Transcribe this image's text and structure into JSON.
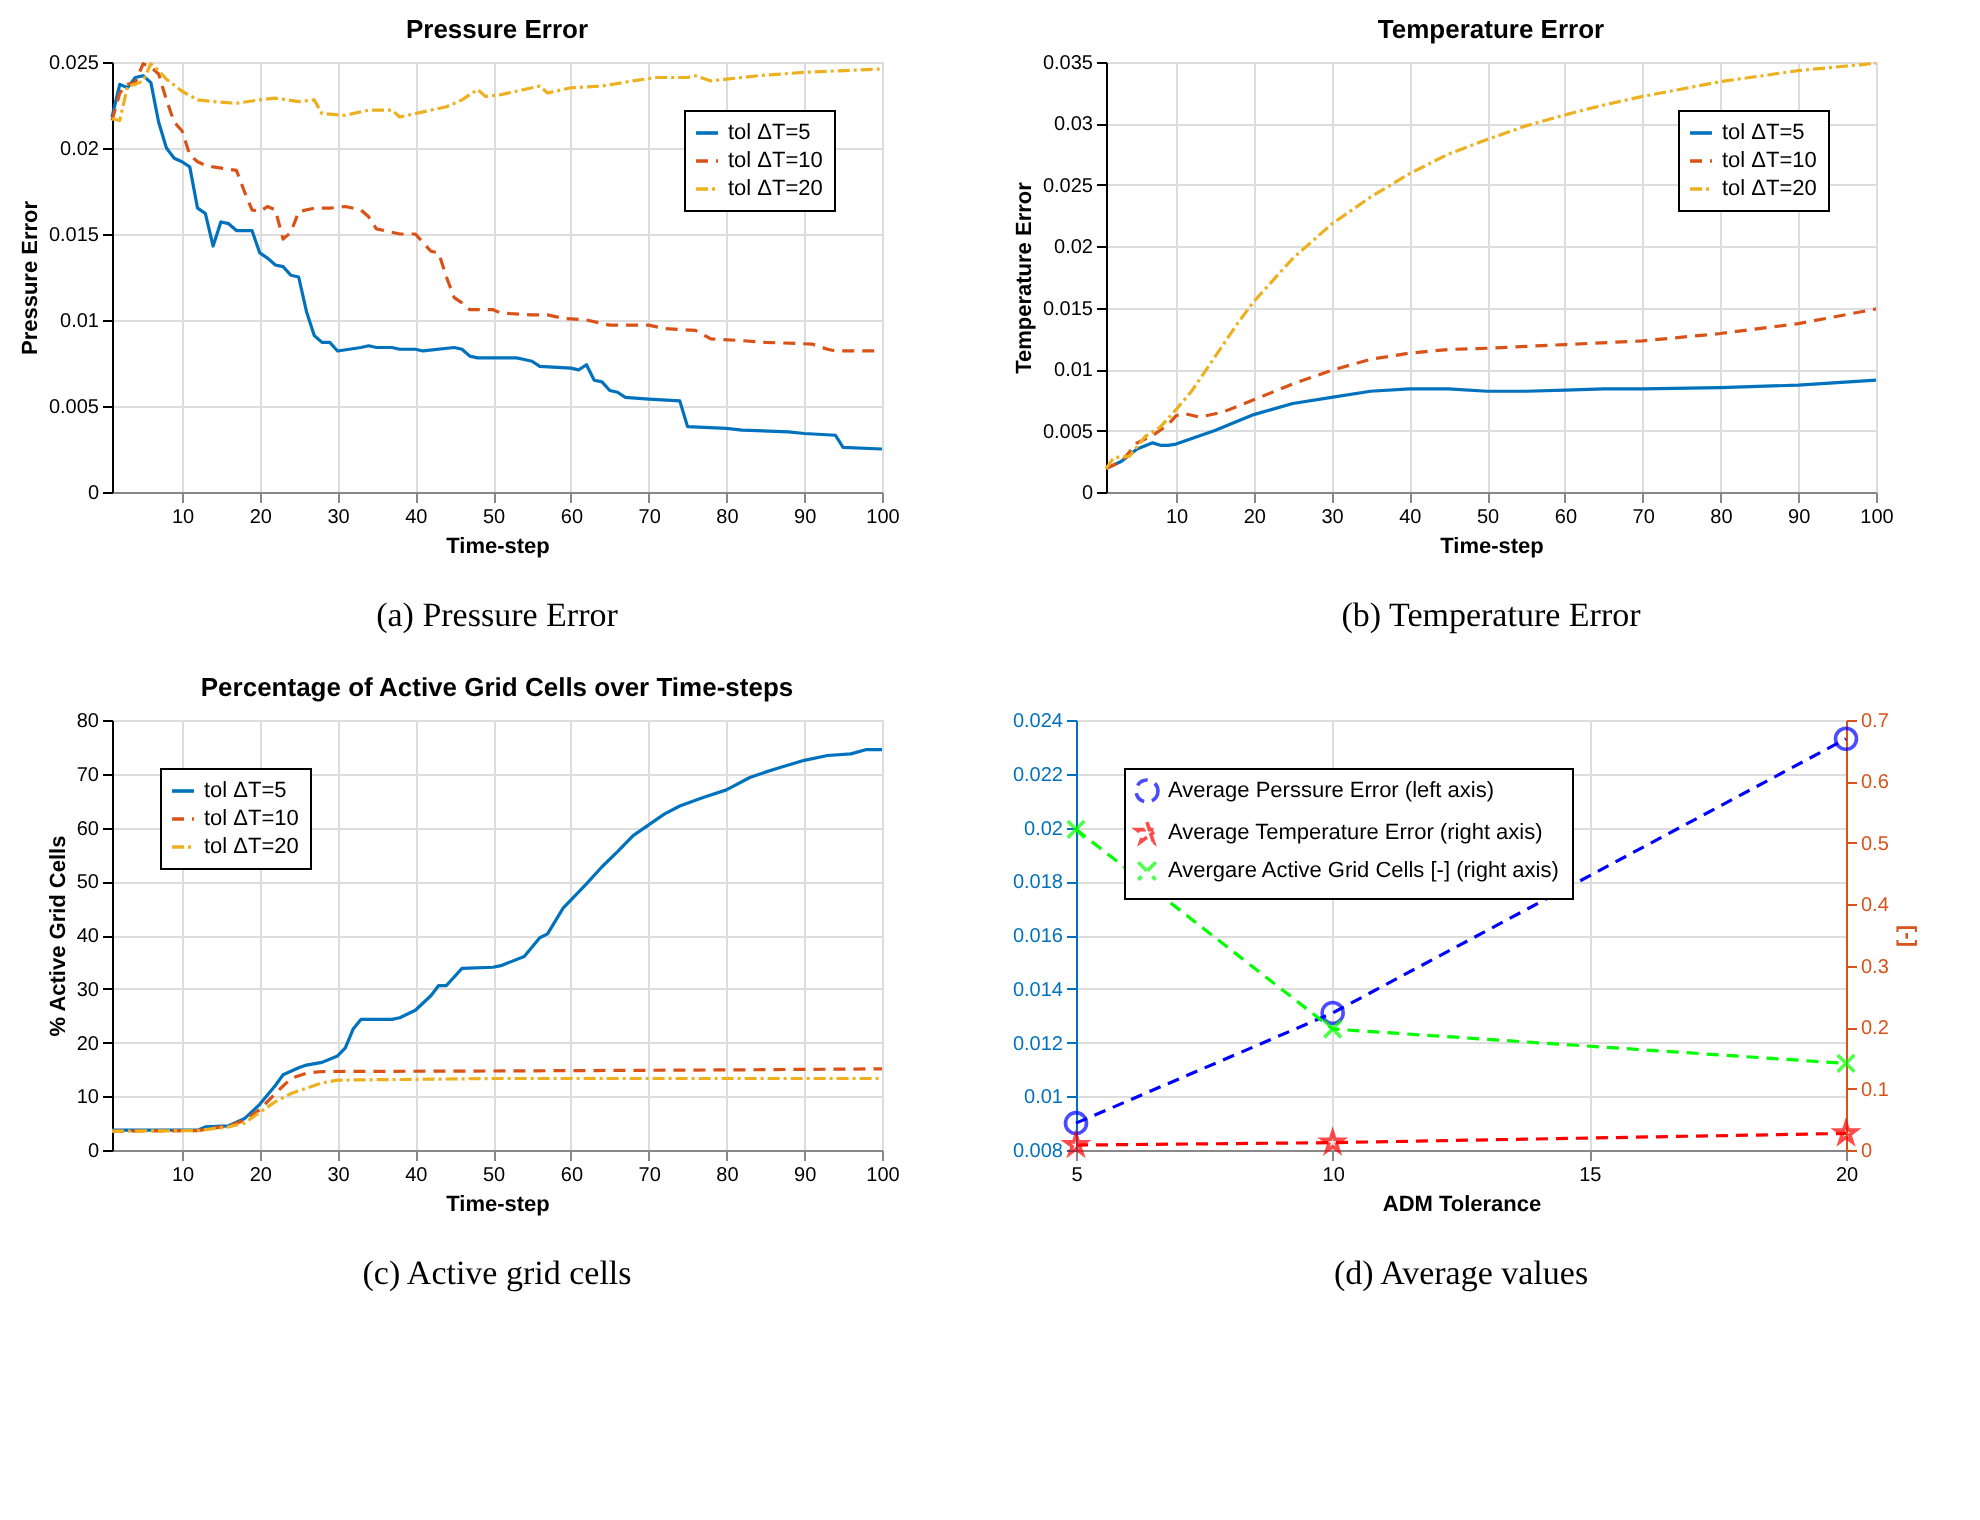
{
  "chart_data": [
    {
      "type": "line",
      "title": "Pressure Error",
      "xlabel": "Time-step",
      "ylabel": "Pressure Error",
      "annotations": [
        "(a) Pressure Error"
      ],
      "xlim": [
        1,
        100
      ],
      "xticks": [
        10,
        20,
        30,
        40,
        50,
        60,
        70,
        80,
        90,
        100
      ],
      "ylim": [
        0,
        0.025
      ],
      "yticks": [
        0,
        0.005,
        0.01,
        0.015,
        0.02,
        0.025
      ],
      "grid": true,
      "legend": "top right",
      "series": [
        {
          "name": "tol ΔT=5",
          "color": "#0072bd",
          "line_style": "solid",
          "x": [
            1,
            2,
            3,
            4,
            5,
            6,
            7,
            8,
            9,
            10,
            11,
            12,
            13,
            14,
            15,
            16,
            17,
            19,
            20,
            21,
            22,
            23,
            24,
            25,
            26,
            27,
            28,
            29,
            30,
            33,
            34,
            35,
            37,
            38,
            40,
            41,
            45,
            46,
            47,
            48,
            53,
            54,
            55,
            56,
            60,
            61,
            62,
            63,
            64,
            65,
            66,
            67,
            70,
            74,
            75,
            80,
            82,
            88,
            90,
            94,
            95,
            100
          ],
          "values": [
            0.0218,
            0.0237,
            0.0235,
            0.0241,
            0.0242,
            0.0238,
            0.0215,
            0.02,
            0.0194,
            0.0192,
            0.0189,
            0.0165,
            0.0162,
            0.0143,
            0.0157,
            0.0156,
            0.0152,
            0.0152,
            0.0139,
            0.0136,
            0.0132,
            0.0131,
            0.0126,
            0.0125,
            0.0105,
            0.0091,
            0.0087,
            0.0087,
            0.0082,
            0.0084,
            0.0085,
            0.0084,
            0.0084,
            0.0083,
            0.0083,
            0.0082,
            0.0084,
            0.0083,
            0.0079,
            0.0078,
            0.0078,
            0.0077,
            0.0076,
            0.0073,
            0.0072,
            0.0071,
            0.0074,
            0.0065,
            0.0064,
            0.0059,
            0.0058,
            0.0055,
            0.0054,
            0.0053,
            0.0038,
            0.0037,
            0.0036,
            0.0035,
            0.0034,
            0.0033,
            0.0026,
            0.0025
          ]
        },
        {
          "name": "tol ΔT=10",
          "color": "#d95319",
          "line_style": "dashed",
          "x": [
            1,
            2,
            3,
            4,
            5,
            6,
            7,
            8,
            9,
            10,
            11,
            12,
            13,
            14,
            17,
            18,
            19,
            20,
            21,
            22,
            23,
            24,
            25,
            27,
            29,
            31,
            33,
            34,
            35,
            38,
            40,
            41,
            42,
            43,
            44,
            45,
            46,
            47,
            50,
            51,
            55,
            57,
            59,
            62,
            64,
            65,
            70,
            72,
            76,
            78,
            82,
            85,
            91,
            93,
            94,
            100
          ],
          "values": [
            0.0216,
            0.0232,
            0.0237,
            0.0238,
            0.0249,
            0.0247,
            0.0243,
            0.0228,
            0.0215,
            0.021,
            0.0196,
            0.0192,
            0.019,
            0.0189,
            0.0187,
            0.0175,
            0.0164,
            0.0163,
            0.0166,
            0.0164,
            0.0147,
            0.0151,
            0.0163,
            0.0165,
            0.0165,
            0.0166,
            0.0164,
            0.016,
            0.0153,
            0.015,
            0.015,
            0.0145,
            0.014,
            0.0139,
            0.0125,
            0.0113,
            0.011,
            0.0106,
            0.0106,
            0.0104,
            0.0103,
            0.0103,
            0.0101,
            0.01,
            0.0098,
            0.0097,
            0.0097,
            0.0095,
            0.0094,
            0.0089,
            0.0088,
            0.0087,
            0.0086,
            0.0083,
            0.0082,
            0.0082
          ]
        },
        {
          "name": "tol ΔT=20",
          "color": "#edb120",
          "line_style": "dotted",
          "x": [
            1,
            2,
            3,
            4,
            5,
            6,
            7,
            8,
            10,
            12,
            14,
            17,
            20,
            22,
            25,
            27,
            28,
            31,
            34,
            37,
            38,
            41,
            44,
            46,
            48,
            49,
            51,
            54,
            56,
            57,
            60,
            64,
            68,
            71,
            75,
            76,
            78,
            80,
            84,
            90,
            100
          ],
          "values": [
            0.0217,
            0.0216,
            0.0236,
            0.0237,
            0.0239,
            0.0249,
            0.0245,
            0.024,
            0.0233,
            0.0228,
            0.0227,
            0.0226,
            0.0228,
            0.0229,
            0.0227,
            0.0228,
            0.022,
            0.0219,
            0.0222,
            0.0222,
            0.0218,
            0.0221,
            0.0224,
            0.0228,
            0.0234,
            0.023,
            0.0231,
            0.0234,
            0.0236,
            0.0232,
            0.0235,
            0.0236,
            0.0239,
            0.0241,
            0.0241,
            0.0242,
            0.0239,
            0.024,
            0.0242,
            0.0244,
            0.0246
          ]
        }
      ]
    },
    {
      "type": "line",
      "title": "Temperature Error",
      "xlabel": "Time-step",
      "ylabel": "Temperature Error",
      "annotations": [
        "(b) Temperature Error"
      ],
      "xlim": [
        1,
        100
      ],
      "xticks": [
        10,
        20,
        30,
        40,
        50,
        60,
        70,
        80,
        90,
        100
      ],
      "ylim": [
        0,
        0.035
      ],
      "yticks": [
        0,
        0.005,
        0.01,
        0.015,
        0.02,
        0.025,
        0.03,
        0.035
      ],
      "grid": true,
      "legend": "top right",
      "series": [
        {
          "name": "tol ΔT=5",
          "color": "#0072bd",
          "line_style": "solid",
          "x": [
            1,
            3,
            5,
            7,
            8,
            9,
            10,
            15,
            20,
            25,
            30,
            35,
            40,
            45,
            50,
            55,
            60,
            65,
            70,
            80,
            90,
            100
          ],
          "values": [
            0.0019,
            0.0025,
            0.0035,
            0.004,
            0.0038,
            0.0038,
            0.0039,
            0.005,
            0.0063,
            0.0072,
            0.0077,
            0.0082,
            0.0084,
            0.0084,
            0.0082,
            0.0082,
            0.0083,
            0.0084,
            0.0084,
            0.0085,
            0.0087,
            0.0091
          ]
        },
        {
          "name": "tol ΔT=10",
          "color": "#d95319",
          "line_style": "dashed",
          "x": [
            1,
            3,
            5,
            7,
            9,
            10,
            11,
            13,
            16,
            20,
            25,
            30,
            35,
            40,
            45,
            50,
            60,
            70,
            80,
            90,
            100
          ],
          "values": [
            0.0019,
            0.0025,
            0.004,
            0.0046,
            0.0055,
            0.0062,
            0.0064,
            0.0061,
            0.0065,
            0.0075,
            0.0088,
            0.0099,
            0.0108,
            0.0113,
            0.0116,
            0.0117,
            0.012,
            0.0123,
            0.0129,
            0.0137,
            0.0149
          ]
        },
        {
          "name": "tol ΔT=20",
          "color": "#edb120",
          "line_style": "dotted",
          "x": [
            1,
            2,
            4,
            6,
            8,
            10,
            12,
            15,
            18,
            20,
            25,
            30,
            35,
            40,
            45,
            50,
            55,
            60,
            65,
            70,
            80,
            90,
            100
          ],
          "values": [
            0.0019,
            0.0028,
            0.0029,
            0.0045,
            0.0053,
            0.0067,
            0.0082,
            0.011,
            0.0138,
            0.0155,
            0.019,
            0.0218,
            0.024,
            0.0259,
            0.0275,
            0.0287,
            0.0298,
            0.0307,
            0.0315,
            0.0322,
            0.0334,
            0.0343,
            0.0349
          ]
        }
      ]
    },
    {
      "type": "line",
      "title": "Percentage of Active Grid Cells over Time-steps",
      "xlabel": "Time-step",
      "ylabel": "% Active Grid Cells",
      "annotations": [
        "(c) Active grid cells"
      ],
      "xlim": [
        1,
        100
      ],
      "xticks": [
        10,
        20,
        30,
        40,
        50,
        60,
        70,
        80,
        90,
        100
      ],
      "ylim": [
        0,
        80
      ],
      "yticks": [
        0,
        10,
        20,
        30,
        40,
        50,
        60,
        70,
        80
      ],
      "grid": true,
      "legend": "top left",
      "series": [
        {
          "name": "tol ΔT=5",
          "color": "#0072bd",
          "line_style": "solid",
          "x": [
            1,
            12,
            13,
            16,
            18,
            20,
            22,
            23,
            25,
            26,
            28,
            30,
            31,
            32,
            33,
            37,
            38,
            40,
            42,
            43,
            44,
            46,
            50,
            51,
            54,
            56,
            57,
            59,
            62,
            64,
            66,
            68,
            70,
            72,
            74,
            77,
            80,
            83,
            85,
            87,
            90,
            93,
            96,
            98,
            100
          ],
          "values": [
            3.7,
            3.7,
            4.3,
            4.5,
            5.8,
            8.5,
            12,
            14,
            15.3,
            15.8,
            16.3,
            17.5,
            19,
            22.5,
            24.3,
            24.3,
            24.6,
            26,
            28.7,
            30.6,
            30.6,
            33.8,
            34,
            34.3,
            36,
            39.5,
            40.2,
            45,
            49.5,
            52.7,
            55.5,
            58.5,
            60.5,
            62.5,
            64,
            65.6,
            67,
            69.3,
            70.3,
            71.2,
            72.5,
            73.4,
            73.7,
            74.5,
            74.5
          ]
        },
        {
          "name": "tol ΔT=10",
          "color": "#d95319",
          "line_style": "dashed",
          "x": [
            1,
            12,
            16,
            18,
            20,
            22,
            24,
            26,
            28,
            50,
            80,
            100
          ],
          "values": [
            3.5,
            3.6,
            4.5,
            5.5,
            7.5,
            10.5,
            13.3,
            14.3,
            14.6,
            14.7,
            14.9,
            15.1
          ]
        },
        {
          "name": "tol ΔT=20",
          "color": "#edb120",
          "line_style": "dotted",
          "x": [
            1,
            12,
            16,
            18,
            20,
            22,
            24,
            26,
            28,
            30,
            50,
            100
          ],
          "values": [
            3.5,
            3.6,
            4.3,
            5,
            7,
            9,
            10.5,
            11.5,
            12.5,
            13,
            13.3,
            13.3
          ]
        }
      ]
    },
    {
      "type": "line",
      "xlabel": "ADM Tolerance",
      "y2label": "[-]",
      "annotations": [
        "(d) Average values"
      ],
      "x": [
        5,
        10,
        20
      ],
      "xlim": [
        5,
        20
      ],
      "xticks": [
        5,
        10,
        15,
        20
      ],
      "ylim": [
        0.008,
        0.024
      ],
      "yticks": [
        0.008,
        0.01,
        0.012,
        0.014,
        0.016,
        0.018,
        0.02,
        0.022,
        0.024
      ],
      "y2lim": [
        0,
        0.7
      ],
      "y2ticks": [
        0,
        0.1,
        0.2,
        0.3,
        0.4,
        0.5,
        0.6,
        0.7
      ],
      "grid": true,
      "legend": "top left",
      "series": [
        {
          "name": "Average Perssure Error (left axis)",
          "color": "#0000ff",
          "line_style": "dashed",
          "marker": "circle",
          "values": [
            0.009,
            0.0131,
            0.0233
          ]
        },
        {
          "name": "Average Temperature Error (right axis)",
          "color": "#ff0000",
          "line_style": "dashed",
          "marker": "star",
          "axis": "y2",
          "values": [
            0.008,
            0.012,
            0.027
          ]
        },
        {
          "name": "Avergare Active Grid Cells [-] (right axis)",
          "color": "#00ff00",
          "line_style": "dashed",
          "marker": "cross",
          "axis": "y2",
          "values": [
            0.522,
            0.197,
            0.141
          ]
        }
      ]
    }
  ]
}
